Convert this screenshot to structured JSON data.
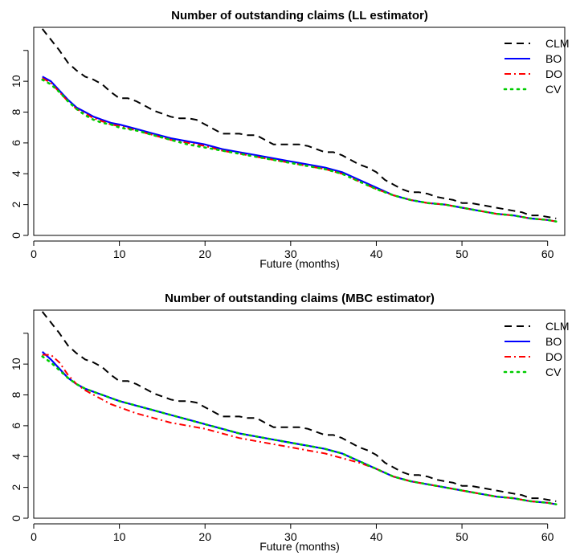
{
  "chart_data": [
    {
      "type": "line",
      "title": "Number of outstanding claims (LL estimator)",
      "xlabel": "Future (months)",
      "ylabel": "",
      "xlim": [
        0,
        62
      ],
      "ylim": [
        0,
        13.5
      ],
      "xticks": [
        0,
        10,
        20,
        30,
        40,
        50,
        60
      ],
      "yticks": [
        0,
        2,
        4,
        6,
        8,
        10,
        12
      ],
      "ytick_labels": [
        "0",
        "2",
        "4",
        "6",
        "8",
        "10",
        ""
      ],
      "legend_position": "top-right",
      "series": [
        {
          "name": "CLM",
          "color": "#000000",
          "dash": "dashed",
          "x": [
            1,
            2,
            3,
            4,
            5,
            6,
            7,
            8,
            9,
            10,
            11,
            12,
            13,
            14,
            15,
            16,
            17,
            18,
            19,
            20,
            21,
            22,
            23,
            24,
            25,
            26,
            27,
            28,
            29,
            30,
            31,
            32,
            33,
            34,
            35,
            36,
            37,
            38,
            39,
            40,
            41,
            42,
            43,
            44,
            45,
            46,
            47,
            48,
            49,
            50,
            51,
            52,
            53,
            54,
            55,
            56,
            57,
            58,
            59,
            60,
            61
          ],
          "y": [
            13.4,
            12.7,
            12.0,
            11.2,
            10.7,
            10.3,
            10.1,
            9.8,
            9.3,
            8.9,
            8.9,
            8.7,
            8.4,
            8.1,
            7.9,
            7.7,
            7.6,
            7.6,
            7.5,
            7.2,
            6.9,
            6.6,
            6.6,
            6.6,
            6.5,
            6.5,
            6.2,
            5.9,
            5.9,
            5.9,
            5.9,
            5.8,
            5.6,
            5.4,
            5.4,
            5.2,
            4.9,
            4.6,
            4.4,
            4.1,
            3.6,
            3.3,
            3.0,
            2.8,
            2.8,
            2.7,
            2.5,
            2.4,
            2.3,
            2.1,
            2.1,
            2.0,
            1.9,
            1.8,
            1.7,
            1.6,
            1.5,
            1.3,
            1.3,
            1.2,
            1.1
          ]
        },
        {
          "name": "BO",
          "color": "#0000ff",
          "dash": "solid",
          "x": [
            1,
            2,
            3,
            4,
            5,
            6,
            7,
            8,
            9,
            10,
            12,
            14,
            16,
            18,
            20,
            22,
            24,
            26,
            28,
            30,
            32,
            34,
            36,
            38,
            40,
            42,
            44,
            46,
            48,
            50,
            52,
            54,
            56,
            58,
            60,
            61
          ],
          "y": [
            10.3,
            10.0,
            9.4,
            8.8,
            8.3,
            8.0,
            7.7,
            7.5,
            7.3,
            7.2,
            6.9,
            6.6,
            6.3,
            6.1,
            5.9,
            5.6,
            5.4,
            5.2,
            5.0,
            4.8,
            4.6,
            4.4,
            4.1,
            3.6,
            3.1,
            2.6,
            2.3,
            2.1,
            2.0,
            1.8,
            1.6,
            1.4,
            1.3,
            1.1,
            1.0,
            0.9
          ]
        },
        {
          "name": "DO",
          "color": "#ff0000",
          "dash": "dashdot",
          "x": [
            1,
            2,
            3,
            4,
            5,
            6,
            7,
            8,
            9,
            10,
            12,
            14,
            16,
            18,
            20,
            22,
            24,
            26,
            28,
            30,
            32,
            34,
            36,
            38,
            40,
            42,
            44,
            46,
            48,
            50,
            52,
            54,
            56,
            58,
            60,
            61
          ],
          "y": [
            10.2,
            9.9,
            9.3,
            8.7,
            8.2,
            7.9,
            7.6,
            7.4,
            7.2,
            7.1,
            6.8,
            6.5,
            6.2,
            6.0,
            5.8,
            5.5,
            5.3,
            5.1,
            4.9,
            4.7,
            4.5,
            4.3,
            4.0,
            3.5,
            3.0,
            2.6,
            2.3,
            2.1,
            2.0,
            1.8,
            1.6,
            1.4,
            1.3,
            1.1,
            1.0,
            0.9
          ]
        },
        {
          "name": "CV",
          "color": "#00cc00",
          "dash": "dotted",
          "x": [
            1,
            2,
            3,
            4,
            5,
            6,
            7,
            8,
            9,
            10,
            12,
            14,
            16,
            18,
            20,
            22,
            24,
            26,
            28,
            30,
            32,
            34,
            36,
            38,
            40,
            42,
            44,
            46,
            48,
            50,
            52,
            54,
            56,
            58,
            60,
            61
          ],
          "y": [
            10.1,
            9.8,
            9.3,
            8.7,
            8.2,
            7.8,
            7.5,
            7.3,
            7.2,
            7.0,
            6.8,
            6.5,
            6.2,
            5.9,
            5.7,
            5.5,
            5.3,
            5.1,
            4.9,
            4.7,
            4.5,
            4.3,
            4.0,
            3.5,
            3.0,
            2.6,
            2.3,
            2.1,
            2.0,
            1.8,
            1.6,
            1.4,
            1.3,
            1.1,
            1.0,
            0.9
          ]
        }
      ]
    },
    {
      "type": "line",
      "title": "Number of outstanding claims (MBC estimator)",
      "xlabel": "Future (months)",
      "ylabel": "",
      "xlim": [
        0,
        62
      ],
      "ylim": [
        0,
        13.5
      ],
      "xticks": [
        0,
        10,
        20,
        30,
        40,
        50,
        60
      ],
      "yticks": [
        0,
        2,
        4,
        6,
        8,
        10,
        12
      ],
      "ytick_labels": [
        "0",
        "2",
        "4",
        "6",
        "8",
        "10",
        ""
      ],
      "legend_position": "top-right",
      "series": [
        {
          "name": "CLM",
          "color": "#000000",
          "dash": "dashed",
          "x": [
            1,
            2,
            3,
            4,
            5,
            6,
            7,
            8,
            9,
            10,
            11,
            12,
            13,
            14,
            15,
            16,
            17,
            18,
            19,
            20,
            21,
            22,
            23,
            24,
            25,
            26,
            27,
            28,
            29,
            30,
            31,
            32,
            33,
            34,
            35,
            36,
            37,
            38,
            39,
            40,
            41,
            42,
            43,
            44,
            45,
            46,
            47,
            48,
            49,
            50,
            51,
            52,
            53,
            54,
            55,
            56,
            57,
            58,
            59,
            60,
            61
          ],
          "y": [
            13.4,
            12.7,
            12.0,
            11.2,
            10.7,
            10.3,
            10.1,
            9.8,
            9.3,
            8.9,
            8.9,
            8.7,
            8.4,
            8.1,
            7.9,
            7.7,
            7.6,
            7.6,
            7.5,
            7.2,
            6.9,
            6.6,
            6.6,
            6.6,
            6.5,
            6.5,
            6.2,
            5.9,
            5.9,
            5.9,
            5.9,
            5.8,
            5.6,
            5.4,
            5.4,
            5.2,
            4.9,
            4.6,
            4.4,
            4.1,
            3.6,
            3.3,
            3.0,
            2.8,
            2.8,
            2.7,
            2.5,
            2.4,
            2.3,
            2.1,
            2.1,
            2.0,
            1.9,
            1.8,
            1.7,
            1.6,
            1.5,
            1.3,
            1.3,
            1.2,
            1.1
          ]
        },
        {
          "name": "BO",
          "color": "#0000ff",
          "dash": "solid",
          "x": [
            1,
            2,
            3,
            4,
            5,
            6,
            7,
            8,
            9,
            10,
            12,
            14,
            16,
            18,
            20,
            22,
            24,
            26,
            28,
            30,
            32,
            34,
            36,
            38,
            40,
            42,
            44,
            46,
            48,
            50,
            52,
            54,
            56,
            58,
            60,
            61
          ],
          "y": [
            10.8,
            10.3,
            9.7,
            9.1,
            8.7,
            8.4,
            8.2,
            8.0,
            7.8,
            7.6,
            7.3,
            7.0,
            6.7,
            6.4,
            6.1,
            5.8,
            5.5,
            5.3,
            5.1,
            4.9,
            4.7,
            4.5,
            4.2,
            3.7,
            3.2,
            2.7,
            2.4,
            2.2,
            2.0,
            1.8,
            1.6,
            1.4,
            1.3,
            1.1,
            1.0,
            0.9
          ]
        },
        {
          "name": "DO",
          "color": "#ff0000",
          "dash": "dashdot",
          "x": [
            1,
            2,
            3,
            4,
            5,
            6,
            7,
            8,
            9,
            10,
            12,
            14,
            16,
            18,
            20,
            22,
            24,
            26,
            28,
            30,
            32,
            34,
            36,
            38,
            40,
            42,
            44,
            46,
            48,
            50,
            52,
            54,
            56,
            58,
            60,
            61
          ],
          "y": [
            10.6,
            10.6,
            10.1,
            9.3,
            8.7,
            8.3,
            8.0,
            7.7,
            7.4,
            7.2,
            6.8,
            6.5,
            6.2,
            6.0,
            5.8,
            5.5,
            5.2,
            5.0,
            4.8,
            4.6,
            4.4,
            4.2,
            3.9,
            3.6,
            3.2,
            2.7,
            2.4,
            2.2,
            2.0,
            1.8,
            1.6,
            1.4,
            1.3,
            1.1,
            1.0,
            0.9
          ]
        },
        {
          "name": "CV",
          "color": "#00cc00",
          "dash": "dotted",
          "x": [
            1,
            2,
            3,
            4,
            5,
            6,
            7,
            8,
            9,
            10,
            12,
            14,
            16,
            18,
            20,
            22,
            24,
            26,
            28,
            30,
            32,
            34,
            36,
            38,
            40,
            42,
            44,
            46,
            48,
            50,
            52,
            54,
            56,
            58,
            60,
            61
          ],
          "y": [
            10.5,
            10.1,
            9.6,
            9.1,
            8.7,
            8.4,
            8.2,
            8.0,
            7.8,
            7.6,
            7.3,
            7.0,
            6.7,
            6.4,
            6.1,
            5.8,
            5.5,
            5.3,
            5.1,
            4.9,
            4.7,
            4.5,
            4.2,
            3.7,
            3.2,
            2.7,
            2.4,
            2.2,
            2.0,
            1.8,
            1.6,
            1.4,
            1.3,
            1.1,
            1.0,
            0.9
          ]
        }
      ]
    }
  ]
}
